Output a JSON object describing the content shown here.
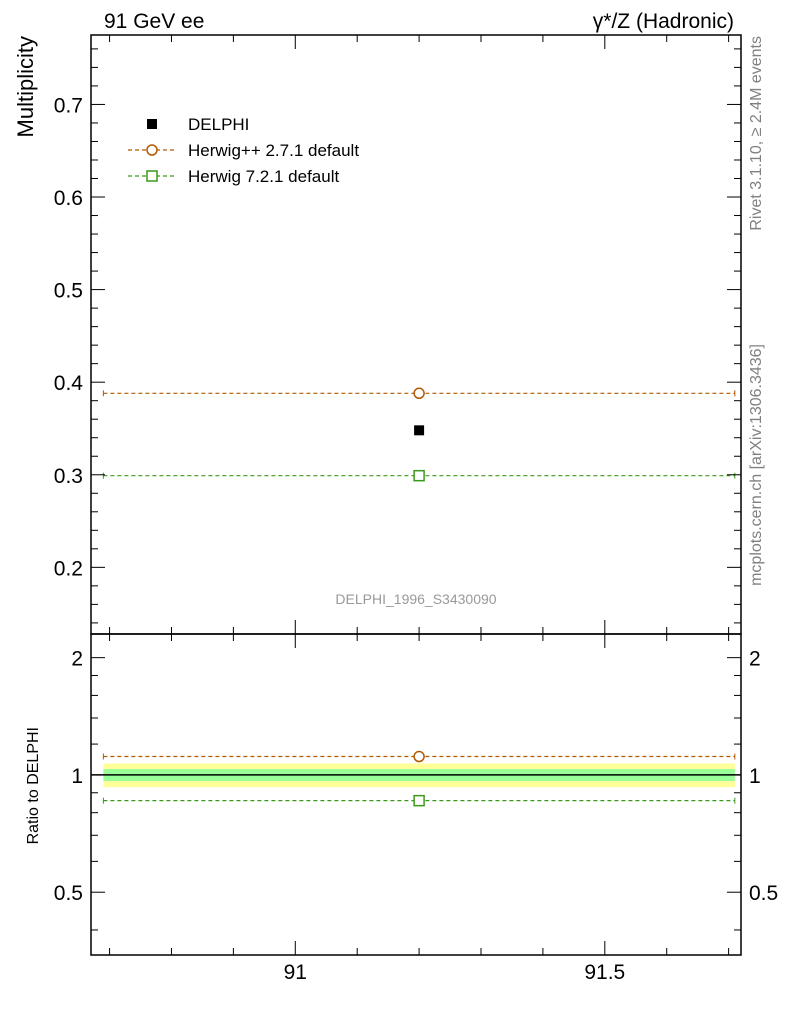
{
  "header": {
    "left": "91 GeV ee",
    "right": "γ*/Z (Hadronic)"
  },
  "side_labels": {
    "top": "Rivet 3.1.10, ≥ 2.4M events",
    "bottom": "mcplots.cern.ch [arXiv:1306.3436]"
  },
  "watermark": "DELPHI_1996_S3430090",
  "chart_data": [
    {
      "type": "scatter",
      "panel": "main",
      "ylabel": "Multiplicity",
      "xlim": [
        90.67,
        91.72
      ],
      "ylim": [
        0.128,
        0.775
      ],
      "yticks": [
        0.2,
        0.3,
        0.4,
        0.5,
        0.6,
        0.7
      ],
      "ytick_labels": [
        "0.2",
        "0.3",
        "0.4",
        "0.5",
        "0.6",
        "0.7"
      ],
      "legend_position": "top-left",
      "series": [
        {
          "name": "DELPHI",
          "marker": "filled-square",
          "color": "#000000",
          "x": [
            91.2
          ],
          "y": [
            0.348
          ]
        },
        {
          "name": "Herwig++ 2.7.1 default",
          "marker": "open-circle",
          "color": "#b35900",
          "x": [
            91.2
          ],
          "y": [
            0.388
          ],
          "line_x": [
            90.69,
            91.71
          ]
        },
        {
          "name": "Herwig 7.2.1 default",
          "marker": "open-square",
          "color": "#3a9a1a",
          "x": [
            91.2
          ],
          "y": [
            0.299
          ],
          "line_x": [
            90.69,
            91.71
          ]
        }
      ]
    },
    {
      "type": "scatter",
      "panel": "ratio",
      "ylabel": "Ratio to DELPHI",
      "xlim": [
        90.67,
        91.72
      ],
      "ylim": [
        0.345,
        2.3
      ],
      "log_scale": true,
      "yticks": [
        0.5,
        1,
        2
      ],
      "ytick_labels": [
        "0.5",
        "1",
        "2"
      ],
      "xticks": [
        91,
        91.5
      ],
      "xtick_labels": [
        "91",
        "91.5"
      ],
      "bands": [
        {
          "kind": "total-uncertainty",
          "color": "#ffff99",
          "range": [
            0.93,
            1.07
          ]
        },
        {
          "kind": "stat-uncertainty",
          "color": "#99ff99",
          "range": [
            0.965,
            1.035
          ]
        }
      ],
      "series": [
        {
          "name": "Herwig++ 2.7.1 default",
          "marker": "open-circle",
          "color": "#b35900",
          "x": [
            91.2
          ],
          "y": [
            1.115
          ]
        },
        {
          "name": "Herwig 7.2.1 default",
          "marker": "open-square",
          "color": "#3a9a1a",
          "x": [
            91.2
          ],
          "y": [
            0.859
          ]
        }
      ]
    }
  ]
}
